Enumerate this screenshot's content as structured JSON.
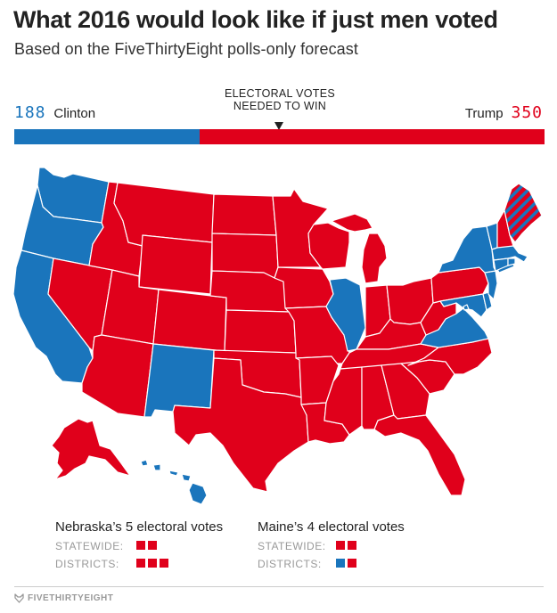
{
  "title": "What 2016 would look like if just men voted",
  "subtitle": "Based on the FiveThirtyEight polls-only forecast",
  "tally": {
    "clinton_votes": "188",
    "clinton_label": "Clinton",
    "trump_votes": "350",
    "trump_label": "Trump",
    "threshold_line1": "ELECTORAL VOTES",
    "threshold_line2": "NEEDED TO WIN",
    "total_votes": 538
  },
  "colors": {
    "clinton": "#1a75bc",
    "trump": "#e0001b",
    "border": "#ffffff",
    "text_grey": "#999999"
  },
  "map": {
    "clinton_states": [
      "WA",
      "OR",
      "CA",
      "NM",
      "IL",
      "NY",
      "VT",
      "MA",
      "CT",
      "RI",
      "NJ",
      "DE",
      "MD",
      "DC",
      "VA",
      "HI",
      "ME-1"
    ],
    "trump_states": [
      "ID",
      "MT",
      "WY",
      "NV",
      "UT",
      "CO",
      "AZ",
      "ND",
      "SD",
      "NE",
      "KS",
      "OK",
      "TX",
      "MN",
      "IA",
      "MO",
      "AR",
      "LA",
      "WI",
      "MI",
      "IN",
      "OH",
      "KY",
      "TN",
      "MS",
      "AL",
      "GA",
      "FL",
      "SC",
      "NC",
      "WV",
      "PA",
      "NH",
      "ME",
      "AK",
      "ME-2"
    ]
  },
  "legend": {
    "nebraska": {
      "title": "Nebraska’s 5 electoral votes",
      "statewide_label": "STATEWIDE:",
      "statewide": [
        "trump",
        "trump"
      ],
      "districts_label": "DISTRICTS:",
      "districts": [
        "trump",
        "trump",
        "trump"
      ]
    },
    "maine": {
      "title": "Maine’s 4 electoral votes",
      "statewide_label": "STATEWIDE:",
      "statewide": [
        "trump",
        "trump"
      ],
      "districts_label": "DISTRICTS:",
      "districts": [
        "clinton",
        "trump"
      ]
    }
  },
  "footer": {
    "brand": "FIVETHIRTYEIGHT",
    "brand_icon": "fivethirtyeight-fox-icon"
  }
}
